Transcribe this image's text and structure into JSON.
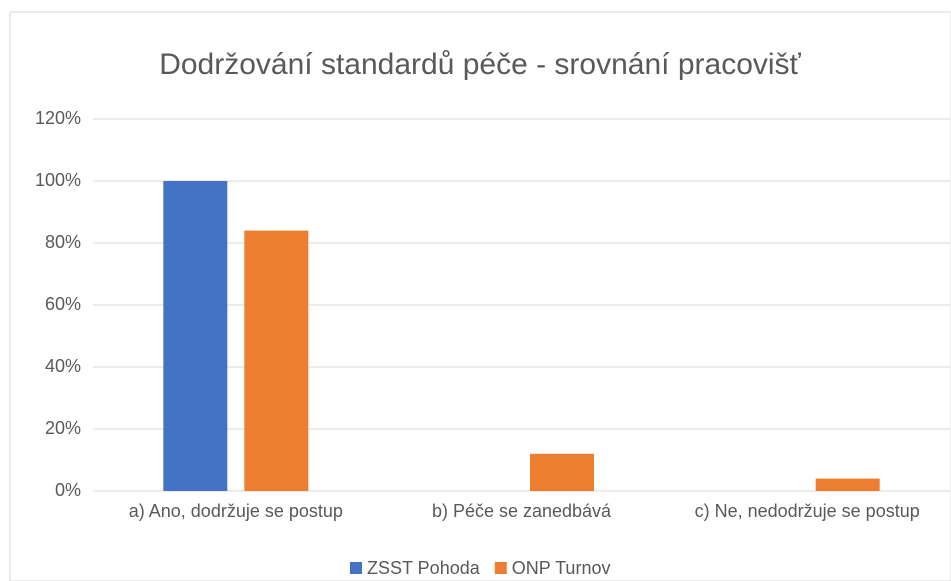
{
  "chart_data": {
    "type": "bar",
    "title": "Dodržování standardů péče - srovnání pracovišť",
    "categories": [
      "a) Ano, dodržuje se postup",
      "b) Péče se zanedbává",
      "c) Ne, nedodržuje se postup"
    ],
    "series": [
      {
        "name": "ZSST Pohoda",
        "color": "#4472c4",
        "values": [
          100,
          0,
          0
        ]
      },
      {
        "name": "ONP Turnov",
        "color": "#ed7d31",
        "values": [
          84,
          12,
          4
        ]
      }
    ],
    "ylim": [
      0,
      120
    ],
    "yticks": [
      {
        "value": 0,
        "label": "0%"
      },
      {
        "value": 20,
        "label": "20%"
      },
      {
        "value": 40,
        "label": "40%"
      },
      {
        "value": 60,
        "label": "60%"
      },
      {
        "value": 80,
        "label": "80%"
      },
      {
        "value": 100,
        "label": "100%"
      },
      {
        "value": 120,
        "label": "120%"
      }
    ],
    "grid": true,
    "legend": "bottom"
  }
}
